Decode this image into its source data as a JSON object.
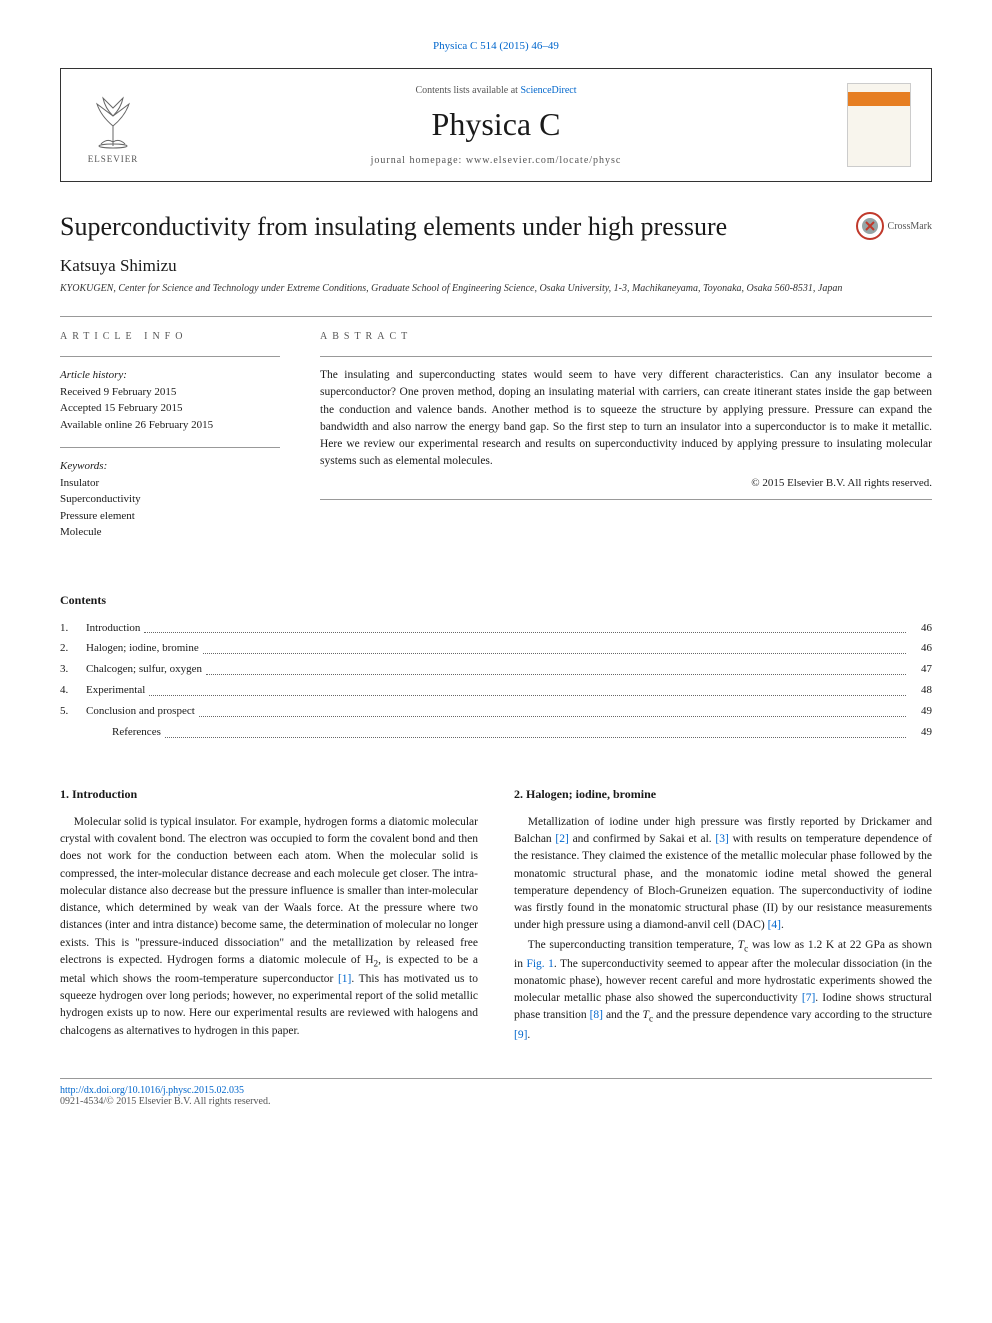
{
  "citation": "Physica C 514 (2015) 46–49",
  "header": {
    "publisher_label": "ELSEVIER",
    "contents_prefix": "Contents lists available at ",
    "contents_link": "ScienceDirect",
    "journal_name": "Physica C",
    "homepage_prefix": "journal homepage: ",
    "homepage_url": "www.elsevier.com/locate/physc"
  },
  "crossmark_label": "CrossMark",
  "article": {
    "title": "Superconductivity from insulating elements under high pressure",
    "author": "Katsuya Shimizu",
    "affiliation": "KYOKUGEN, Center for Science and Technology under Extreme Conditions, Graduate School of Engineering Science, Osaka University, 1-3, Machikaneyama, Toyonaka, Osaka 560-8531, Japan"
  },
  "info": {
    "label": "ARTICLE INFO",
    "history_heading": "Article history:",
    "history_lines": [
      "Received 9 February 2015",
      "Accepted 15 February 2015",
      "Available online 26 February 2015"
    ],
    "keywords_heading": "Keywords:",
    "keywords": [
      "Insulator",
      "Superconductivity",
      "Pressure element",
      "Molecule"
    ]
  },
  "abstract": {
    "label": "ABSTRACT",
    "text": "The insulating and superconducting states would seem to have very different characteristics. Can any insulator become a superconductor? One proven method, doping an insulating material with carriers, can create itinerant states inside the gap between the conduction and valence bands. Another method is to squeeze the structure by applying pressure. Pressure can expand the bandwidth and also narrow the energy band gap. So the first step to turn an insulator into a superconductor is to make it metallic. Here we review our experimental research and results on superconductivity induced by applying pressure to insulating molecular systems such as elemental molecules.",
    "copyright": "© 2015 Elsevier B.V. All rights reserved."
  },
  "contents": {
    "heading": "Contents",
    "items": [
      {
        "num": "1.",
        "title": "Introduction",
        "page": "46"
      },
      {
        "num": "2.",
        "title": "Halogen; iodine, bromine",
        "page": "46"
      },
      {
        "num": "3.",
        "title": "Chalcogen; sulfur, oxygen",
        "page": "47"
      },
      {
        "num": "4.",
        "title": "Experimental",
        "page": "48"
      },
      {
        "num": "5.",
        "title": "Conclusion and prospect",
        "page": "49"
      }
    ],
    "refs": {
      "title": "References",
      "page": "49"
    }
  },
  "section1": {
    "heading": "1. Introduction",
    "para1a": "Molecular solid is typical insulator. For example, hydrogen forms a diatomic molecular crystal with covalent bond. The electron was occupied to form the covalent bond and then does not work for the conduction between each atom. When the molecular solid is compressed, the inter-molecular distance decrease and each molecule get closer. The intra-molecular distance also decrease but the pressure influence is smaller than inter-molecular distance, which determined by weak van der Waals force. At the pressure where two distances (inter and intra distance) become same, the determination of molecular no longer exists. This is \"pressure-induced dissociation\" and the metallization by released free electrons is expected. Hydrogen forms a diatomic molecule of H",
    "para1b": ", is expected to be a metal which shows the room-temperature superconductor ",
    "ref1": "[1]",
    "para1c": ". This has motivated us to squeeze hydrogen over long periods; however, no experimental report of the solid metallic hydrogen exists up to now. Here our experimental results are reviewed with halogens and chalcogens as alternatives to hydrogen in this paper."
  },
  "section2": {
    "heading": "2. Halogen; iodine, bromine",
    "p1a": "Metallization of iodine under high pressure was firstly reported by Drickamer and Balchan ",
    "r2": "[2]",
    "p1b": " and confirmed by Sakai et al. ",
    "r3": "[3]",
    "p1c": " with results on temperature dependence of the resistance. They claimed the existence of the metallic molecular phase followed by the monatomic structural phase, and the monatomic iodine metal showed the general temperature dependency of Bloch-Gruneizen equation. The superconductivity of iodine was firstly found in the monatomic structural phase (II) by our resistance measurements under high pressure using a diamond-anvil cell (DAC) ",
    "r4": "[4]",
    "p1d": ".",
    "p2a": "The superconducting transition temperature, ",
    "tc": "T",
    "tcsub": "c",
    "p2b": " was low as 1.2 K at 22 GPa as shown in ",
    "fig1": "Fig. 1",
    "p2c": ". The superconductivity seemed to appear after the molecular dissociation (in the monatomic phase), however recent careful and more hydrostatic experiments showed the molecular metallic phase also showed the superconductivity ",
    "r7": "[7]",
    "p2d": ". Iodine shows structural phase transition ",
    "r8": "[8]",
    "p2e": " and the ",
    "p2f": " and the pressure dependence vary according to the structure ",
    "r9": "[9]",
    "p2g": "."
  },
  "footer": {
    "doi": "http://dx.doi.org/10.1016/j.physc.2015.02.035",
    "issn": "0921-4534/© 2015 Elsevier B.V. All rights reserved."
  },
  "colors": {
    "link": "#0066cc",
    "text": "#1a1a1a",
    "rule": "#999999",
    "orange": "#e67e22"
  }
}
